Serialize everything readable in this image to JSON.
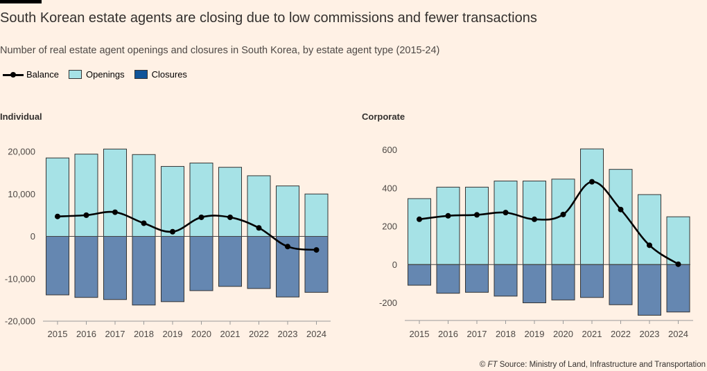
{
  "header": {
    "title": "South Korean estate agents are closing due to low commissions and fewer transactions",
    "subtitle": "Number of real estate agent openings and closures in South Korea, by estate agent type (2015-24)"
  },
  "legend": {
    "balance": "Balance",
    "openings": "Openings",
    "closures": "Closures"
  },
  "colors": {
    "background": "#fff1e5",
    "openings": "#a6e2e6",
    "closures": "#6587b1",
    "legend_closures": "#0f5499",
    "balance": "#000000",
    "axis": "#999999"
  },
  "footer": {
    "credit": "© ",
    "ft": "FT",
    "source": " Source: Ministry of Land, Infrastructure and Transportation"
  },
  "chart_data": [
    {
      "type": "bar",
      "title": "Individual",
      "categories": [
        "2015",
        "2016",
        "2017",
        "2018",
        "2019",
        "2020",
        "2021",
        "2022",
        "2023",
        "2024"
      ],
      "series": [
        {
          "name": "Openings",
          "values": [
            18500,
            19400,
            20600,
            19300,
            16500,
            17300,
            16300,
            14300,
            11900,
            10000
          ]
        },
        {
          "name": "Closures",
          "values": [
            -13800,
            -14400,
            -14900,
            -16200,
            -15400,
            -12800,
            -11800,
            -12300,
            -14300,
            -13200
          ]
        },
        {
          "name": "Balance",
          "values": [
            4700,
            5000,
            5700,
            3100,
            1100,
            4500,
            4500,
            2000,
            -2400,
            -3200
          ]
        }
      ],
      "ylim": [
        -20000,
        20000
      ],
      "yticks": [
        20000,
        10000,
        0,
        -10000,
        -20000
      ],
      "ytick_labels": [
        "20,000",
        "10,000",
        "0",
        "-10,000",
        "-20,000"
      ]
    },
    {
      "type": "bar",
      "title": "Corporate",
      "categories": [
        "2015",
        "2016",
        "2017",
        "2018",
        "2019",
        "2020",
        "2021",
        "2022",
        "2023",
        "2024"
      ],
      "series": [
        {
          "name": "Openings",
          "values": [
            345,
            405,
            405,
            437,
            437,
            447,
            605,
            498,
            366,
            250
          ]
        },
        {
          "name": "Closures",
          "values": [
            -108,
            -150,
            -145,
            -165,
            -200,
            -185,
            -172,
            -210,
            -265,
            -248
          ]
        },
        {
          "name": "Balance",
          "values": [
            237,
            255,
            260,
            272,
            237,
            262,
            433,
            288,
            101,
            2
          ]
        }
      ],
      "ylim": [
        -300,
        600
      ],
      "yticks": [
        600,
        400,
        200,
        0,
        -200
      ],
      "ytick_labels": [
        "600",
        "400",
        "200",
        "0",
        "-200"
      ]
    }
  ]
}
